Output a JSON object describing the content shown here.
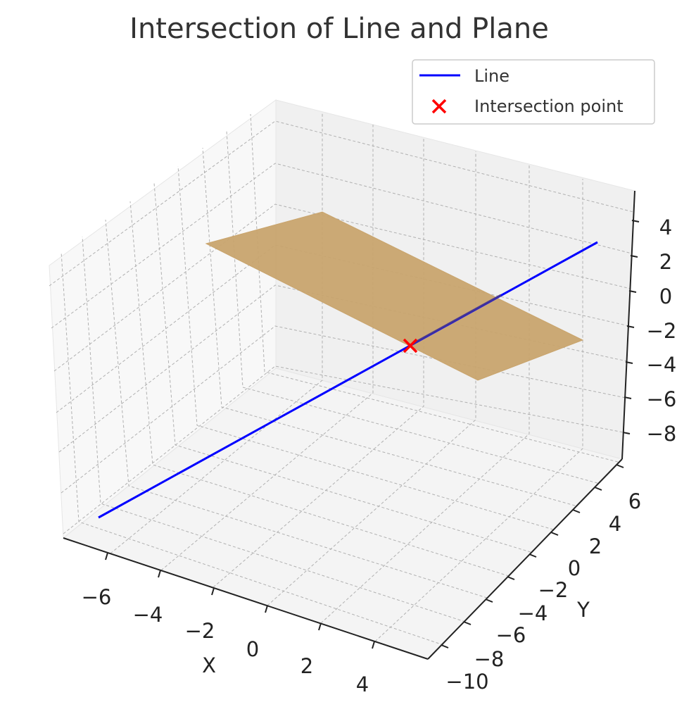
{
  "chart_data": {
    "type": "line3d",
    "title": "Intersection of Line and Plane",
    "xlabel": "X",
    "ylabel": "Y",
    "zlabel": "",
    "xlim": [
      -7.4,
      5.4
    ],
    "ylim": [
      -11.2,
      7.2
    ],
    "zlim": [
      -9.8,
      5.4
    ],
    "xticks": [
      "−6",
      "−4",
      "−2",
      "0",
      "2",
      "4"
    ],
    "yticks": [
      "−10",
      "−8",
      "−6",
      "−4",
      "−2",
      "0",
      "2",
      "4",
      "6"
    ],
    "zticks": [
      "4",
      "2",
      "0",
      "−2",
      "−4",
      "−6",
      "−8"
    ],
    "grid": true,
    "legend_position": "top-right",
    "series": [
      {
        "name": "Line",
        "kind": "line",
        "color": "#0000ff",
        "points": [
          [
            -6.9,
            -10.6,
            -8.2
          ],
          [
            4.6,
            6.6,
            4.8
          ]
        ]
      },
      {
        "name": "Intersection point",
        "kind": "scatter",
        "marker": "x",
        "color": "#ff0000",
        "points": [
          [
            0.8,
            1.0,
            -1.9
          ]
        ]
      }
    ],
    "plane": {
      "color": "#c8a46e",
      "opacity": 0.95,
      "corners": [
        [
          -6,
          -6,
          2.3
        ],
        [
          -6,
          6,
          -0.9
        ],
        [
          4,
          6,
          -4.0
        ],
        [
          4,
          -6,
          -0.8
        ]
      ]
    }
  }
}
